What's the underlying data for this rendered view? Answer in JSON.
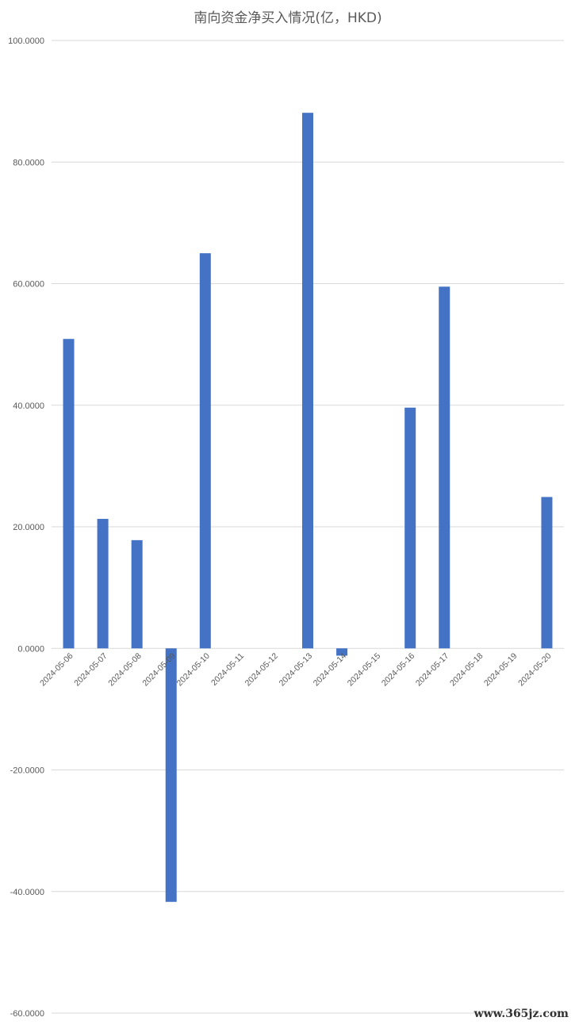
{
  "chart_data": {
    "type": "bar",
    "title": "南向资金净买入情况(亿，HKD)",
    "categories": [
      "2024-05-06",
      "2024-05-07",
      "2024-05-08",
      "2024-05-09",
      "2024-05-10",
      "2024-05-11",
      "2024-05-12",
      "2024-05-13",
      "2024-05-14",
      "2024-05-15",
      "2024-05-16",
      "2024-05-17",
      "2024-05-18",
      "2024-05-19",
      "2024-05-20"
    ],
    "values": [
      50.9,
      21.3,
      17.8,
      -41.7,
      65.0,
      0,
      0,
      88.1,
      -1.2,
      0,
      39.6,
      59.5,
      0,
      0,
      24.9
    ],
    "ylim": [
      -60,
      100
    ],
    "yticks": [
      100,
      80,
      60,
      40,
      20,
      0,
      -20,
      -40,
      -60
    ],
    "ytick_labels": [
      "100.0000",
      "80.0000",
      "60.0000",
      "40.0000",
      "20.0000",
      "0.0000",
      "-20.0000",
      "-40.0000",
      "-60.0000"
    ],
    "grid": true,
    "bar_color": "#4472C4"
  },
  "watermark": "www.365jz.com"
}
